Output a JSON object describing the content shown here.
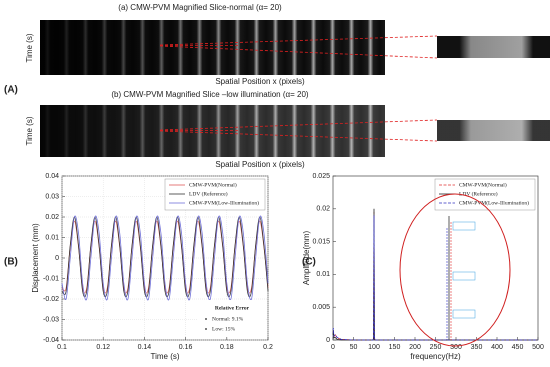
{
  "figure": {
    "panel_a": {
      "label": "(A)",
      "slice_a": {
        "title": "(a) CMW-PVM Magnified Slice-normal (α= 20)",
        "y_label": "Time (s)",
        "x_label": "Spatial Position x (pixels)"
      },
      "slice_b": {
        "title": "(b) CMW-PVM Magnified Slice –low illumination (α= 20)",
        "y_label": "Time (s)",
        "x_label": "Spatial Position x (pixels)"
      }
    },
    "panel_b_label": "(B)",
    "panel_c_label": "(C)"
  },
  "chart_data": [
    {
      "type": "line",
      "xlabel": "Time (s)",
      "ylabel": "Displacement (mm)",
      "grid": true,
      "smooth": true,
      "legend": "upper right",
      "xlim": [
        0.1,
        0.2
      ],
      "ylim": [
        -0.04,
        0.04
      ],
      "xticks": [
        0.1,
        0.12,
        0.14,
        0.16,
        0.18,
        0.2
      ],
      "yticks": [
        -0.04,
        -0.03,
        -0.02,
        -0.01,
        0,
        0.01,
        0.02,
        0.03,
        0.04
      ],
      "x": [
        0.1,
        0.102,
        0.104,
        0.106,
        0.108,
        0.11,
        0.112,
        0.114,
        0.116,
        0.118,
        0.12,
        0.122,
        0.124,
        0.126,
        0.128,
        0.13,
        0.132,
        0.134,
        0.136,
        0.138,
        0.14,
        0.142,
        0.144,
        0.146,
        0.148,
        0.15,
        0.152,
        0.154,
        0.156,
        0.158,
        0.16,
        0.162,
        0.164,
        0.166,
        0.168,
        0.17,
        0.172,
        0.174,
        0.176,
        0.178,
        0.18,
        0.182,
        0.184,
        0.186,
        0.188,
        0.19,
        0.192,
        0.194,
        0.196,
        0.198,
        0.2
      ],
      "series": [
        {
          "name": "CMW-PVM(Normal)",
          "color": "#e05a5a",
          "dashed": false,
          "values": [
            -0.0146,
            -0.0146,
            0.0056,
            0.018,
            0.0056,
            -0.0146,
            -0.0146,
            0.0056,
            0.018,
            0.0056,
            -0.0146,
            -0.0146,
            0.0056,
            0.018,
            0.0056,
            -0.0146,
            -0.0146,
            0.0056,
            0.018,
            0.0056,
            -0.0146,
            -0.0146,
            0.0056,
            0.018,
            0.0056,
            -0.0146,
            -0.0146,
            0.0056,
            0.018,
            0.0056,
            -0.0146,
            -0.0146,
            0.0056,
            0.018,
            0.0056,
            -0.0146,
            -0.0146,
            0.0056,
            0.018,
            0.0056,
            -0.0146,
            -0.0146,
            0.0056,
            0.018,
            0.0056,
            -0.0146,
            -0.0146,
            0.0056,
            0.018,
            0.0056,
            -0.0146
          ]
        },
        {
          "name": "LDV (Reference)",
          "color": "#333333",
          "dashed": false,
          "values": [
            -0.0162,
            -0.0162,
            0.0062,
            0.02,
            0.0062,
            -0.0162,
            -0.0162,
            0.0062,
            0.02,
            0.0062,
            -0.0162,
            -0.0162,
            0.0062,
            0.02,
            0.0062,
            -0.0162,
            -0.0162,
            0.0062,
            0.02,
            0.0062,
            -0.0162,
            -0.0162,
            0.0062,
            0.02,
            0.0062,
            -0.0162,
            -0.0162,
            0.0062,
            0.02,
            0.0062,
            -0.0162,
            -0.0162,
            0.0062,
            0.02,
            0.0062,
            -0.0162,
            -0.0162,
            0.0062,
            0.02,
            0.0062,
            -0.0162,
            -0.0162,
            0.0062,
            0.02,
            0.0062,
            -0.0162,
            -0.0162,
            0.0062,
            0.02,
            0.0062,
            -0.0162
          ]
        },
        {
          "name": "CMW-PVM(Low-Illumination)",
          "color": "#7070d8",
          "dashed": false,
          "values": [
            -0.0123,
            -0.02,
            0,
            0.02,
            0.0123,
            -0.0123,
            -0.02,
            0,
            0.02,
            0.0123,
            -0.0123,
            -0.02,
            0,
            0.02,
            0.0123,
            -0.0123,
            -0.02,
            0,
            0.02,
            0.0123,
            -0.0123,
            -0.02,
            0,
            0.02,
            0.0123,
            -0.0123,
            -0.02,
            0,
            0.02,
            0.0123,
            -0.0123,
            -0.02,
            0,
            0.02,
            0.0123,
            -0.0123,
            -0.02,
            0,
            0.02,
            0.0123,
            -0.0123,
            -0.02,
            0,
            0.02,
            0.0123,
            -0.0123,
            -0.02,
            0,
            0.02,
            0.0123,
            -0.0123
          ]
        }
      ],
      "annotation": {
        "title": "Relative Error",
        "lines": [
          "Normal: 9.1%",
          "Low: 15%"
        ]
      }
    },
    {
      "type": "line",
      "xlabel": "frequency(Hz)",
      "ylabel": "Amplitude(mm)",
      "grid": false,
      "smooth": false,
      "legend": "upper right",
      "xlim": [
        0,
        500
      ],
      "ylim": [
        0,
        0.025
      ],
      "xticks": [
        0,
        50,
        100,
        150,
        200,
        250,
        300,
        350,
        400,
        450,
        500
      ],
      "yticks": [
        0,
        0.005,
        0.01,
        0.015,
        0.02,
        0.025
      ],
      "x": [
        0,
        1,
        2,
        5,
        10,
        20,
        50,
        90,
        98,
        99,
        100,
        101,
        102,
        110,
        200,
        300,
        400,
        500
      ],
      "series": [
        {
          "name": "CMW-PVM(Normal)",
          "color": "#e03030",
          "dashed": true,
          "values": [
            0.0013,
            0.0012,
            0.0005,
            0.0009,
            0.0003,
            0.0001,
            0,
            0,
            0,
            0.0004,
            0.0195,
            0.0004,
            0,
            0,
            0,
            0,
            0,
            0
          ]
        },
        {
          "name": "LDV (Reference)",
          "color": "#222222",
          "dashed": false,
          "values": [
            0.0008,
            0.0015,
            0.0003,
            0.0004,
            0.0001,
            0,
            0,
            0,
            0,
            0.0005,
            0.02,
            0.0005,
            0,
            0,
            0,
            0,
            0,
            0
          ]
        },
        {
          "name": "CMW-PVM(Low-Illumination)",
          "color": "#3030c0",
          "dashed": true,
          "values": [
            0.0015,
            0.0018,
            0.0006,
            0.0008,
            0.0004,
            0.0001,
            0,
            0,
            0,
            0.0004,
            0.019,
            0.0004,
            0,
            0,
            0,
            0,
            0,
            0
          ]
        }
      ]
    }
  ]
}
